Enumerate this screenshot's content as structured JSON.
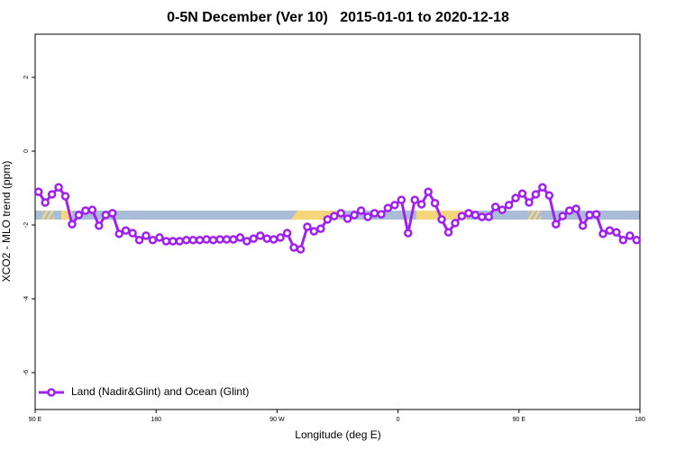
{
  "chart_data": {
    "type": "line",
    "title": "0-5N December (Ver 10)   2015-01-01 to 2020-12-18",
    "xlabel": "Longitude (deg E)",
    "ylabel": "XCO2 - MLO trend (ppm)",
    "xlim": [
      90,
      540
    ],
    "ylim": [
      -7,
      3.17
    ],
    "xticks": [
      {
        "value": 90,
        "label": "90 E"
      },
      180,
      {
        "value": 270,
        "label": "90 W"
      },
      {
        "value": 360,
        "label": "0"
      },
      {
        "value": 450,
        "label": "90 E"
      },
      {
        "value": 540,
        "label": "180"
      }
    ],
    "yticks": [
      -6,
      -4,
      -2,
      0,
      2
    ],
    "legend": "bottom left",
    "x": [
      92.5,
      97.5,
      102.5,
      107.5,
      112.5,
      117.5,
      122.5,
      127.5,
      132.5,
      137.5,
      142.5,
      147.5,
      152.5,
      157.5,
      162.5,
      167.5,
      172.5,
      177.5,
      182.5,
      187.5,
      192.5,
      197.5,
      202.5,
      207.5,
      212.5,
      217.5,
      222.5,
      227.5,
      232.5,
      237.5,
      242.5,
      247.5,
      252.5,
      257.5,
      262.5,
      267.5,
      272.5,
      277.5,
      282.5,
      287.5,
      292.5,
      297.5,
      302.5,
      307.5,
      312.5,
      317.5,
      322.5,
      327.5,
      332.5,
      337.5,
      342.5,
      347.5,
      352.5,
      357.5,
      362.5,
      367.5,
      372.5,
      377.5,
      382.5,
      387.5,
      392.5,
      397.5,
      402.5,
      407.5,
      412.5,
      417.5,
      422.5,
      427.5,
      432.5,
      437.5,
      442.5,
      447.5,
      452.5,
      457.5,
      462.5,
      467.5,
      472.5,
      477.5,
      482.5,
      487.5,
      492.5,
      497.5,
      502.5,
      507.5,
      512.5,
      517.5,
      522.5,
      527.5,
      532.5,
      537.5
    ],
    "series": [
      {
        "name": "Land (Nadir&Glint) and Ocean (Glint)",
        "color": "#a020f0",
        "values": [
          -1.1,
          -1.39,
          -1.17,
          -0.98,
          -1.22,
          -1.98,
          -1.73,
          -1.61,
          -1.59,
          -2.02,
          -1.73,
          -1.68,
          -2.24,
          -2.15,
          -2.22,
          -2.41,
          -2.29,
          -2.41,
          -2.34,
          -2.44,
          -2.44,
          -2.44,
          -2.41,
          -2.41,
          -2.41,
          -2.39,
          -2.41,
          -2.39,
          -2.39,
          -2.39,
          -2.34,
          -2.44,
          -2.37,
          -2.29,
          -2.37,
          -2.39,
          -2.34,
          -2.22,
          -2.61,
          -2.66,
          -2.05,
          -2.17,
          -2.1,
          -1.85,
          -1.76,
          -1.68,
          -1.83,
          -1.73,
          -1.61,
          -1.78,
          -1.68,
          -1.71,
          -1.54,
          -1.46,
          -1.32,
          -2.22,
          -1.32,
          -1.44,
          -1.1,
          -1.41,
          -1.85,
          -2.2,
          -1.95,
          -1.76,
          -1.68,
          -1.73,
          -1.78,
          -1.78,
          -1.51,
          -1.59,
          -1.46,
          -1.27,
          -1.15,
          -1.39,
          -1.17,
          -0.98,
          -1.2,
          -1.98,
          -1.76,
          -1.61,
          -1.56,
          -2.02,
          -1.73,
          -1.71,
          -2.24,
          -2.15,
          -2.2,
          -2.41,
          -2.29,
          -2.41
        ]
      }
    ]
  }
}
